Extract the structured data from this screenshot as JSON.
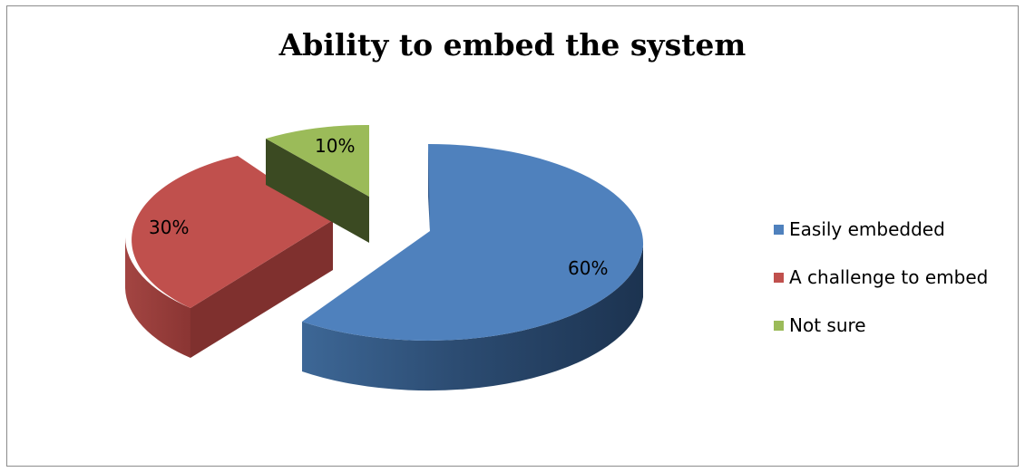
{
  "chart_data": {
    "type": "pie",
    "title": "Ability to embed the system",
    "slices": [
      {
        "name": "Easily embedded",
        "value": 60,
        "label": "60%",
        "color": "#4F81BD"
      },
      {
        "name": "A challenge to embed",
        "value": 30,
        "label": "30%",
        "color": "#C0504D"
      },
      {
        "name": "Not sure",
        "value": 10,
        "label": "10%",
        "color": "#9BBB59"
      }
    ],
    "legend_position": "right",
    "style": "3d-exploded"
  }
}
